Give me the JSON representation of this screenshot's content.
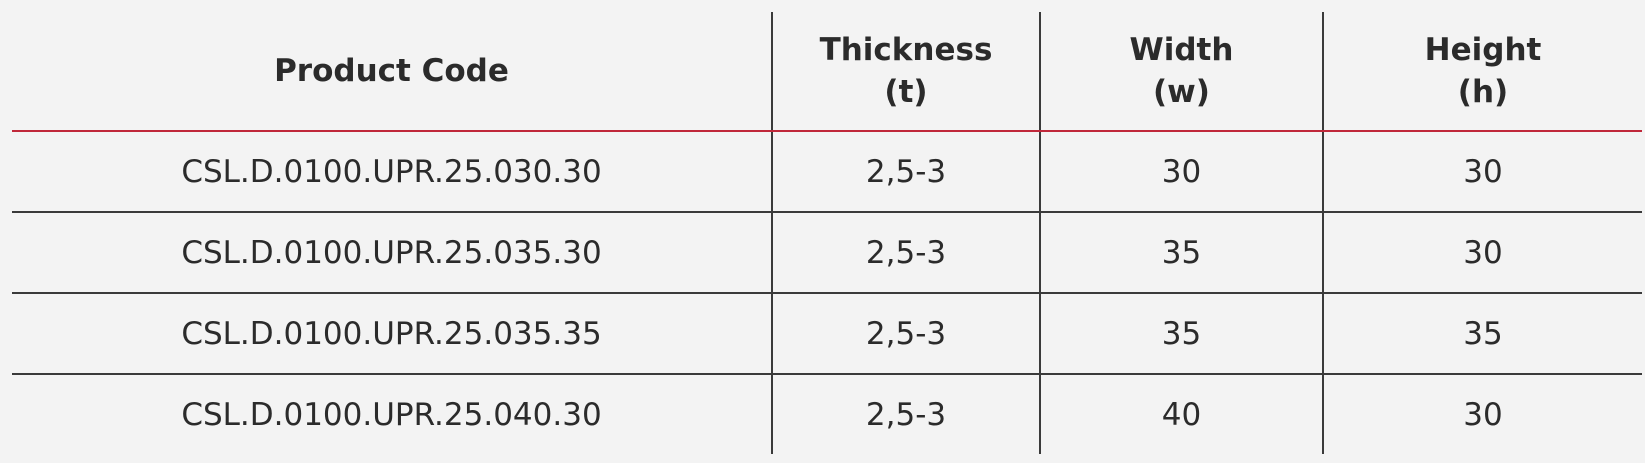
{
  "table": {
    "headers": [
      {
        "line1": "Product Code",
        "line2": ""
      },
      {
        "line1": "Thickness",
        "line2": "(t)"
      },
      {
        "line1": "Width",
        "line2": "(w)"
      },
      {
        "line1": "Height",
        "line2": "(h)"
      }
    ],
    "rows": [
      [
        "CSL.D.0100.UPR.25.030.30",
        "2,5-3",
        "30",
        "30"
      ],
      [
        "CSL.D.0100.UPR.25.035.30",
        "2,5-3",
        "35",
        "30"
      ],
      [
        "CSL.D.0100.UPR.25.035.35",
        "2,5-3",
        "35",
        "35"
      ],
      [
        "CSL.D.0100.UPR.25.040.30",
        "2,5-3",
        "40",
        "30"
      ]
    ]
  },
  "colors": {
    "header_rule": "#c0283a",
    "grid_lines": "#3a3a3a",
    "text": "#2b2b2b",
    "background": "#f3f3f3"
  }
}
